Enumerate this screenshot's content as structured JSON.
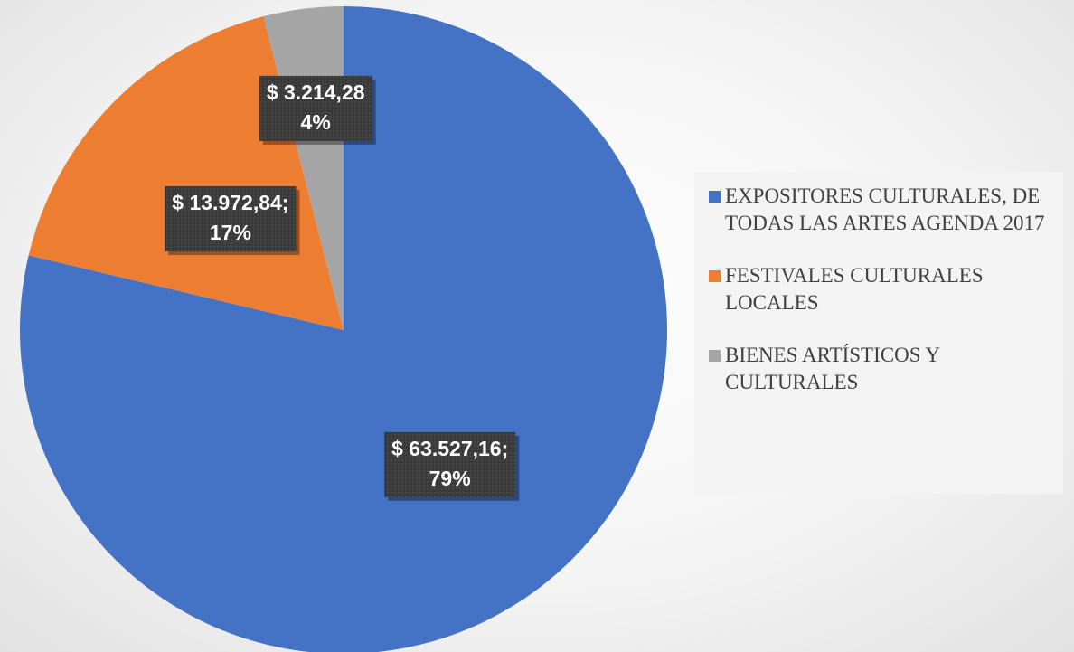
{
  "chart_data": {
    "type": "pie",
    "categories": [
      "EXPOSITORES CULTURALES, DE TODAS LAS ARTES AGENDA 2017",
      "FESTIVALES CULTURALES LOCALES",
      "BIENES ARTÍSTICOS Y CULTURALES"
    ],
    "values": [
      63527.16,
      13972.84,
      3214.28
    ],
    "value_labels": [
      "$ 63.527,16;",
      "$ 13.972,84;",
      "$ 3.214,28"
    ],
    "percentages": [
      79,
      17,
      4
    ],
    "percentage_labels": [
      "79%",
      "17%",
      "4%"
    ],
    "colors": [
      "#4472c4",
      "#ed7d31",
      "#a5a5a5"
    ],
    "legend": "right"
  }
}
